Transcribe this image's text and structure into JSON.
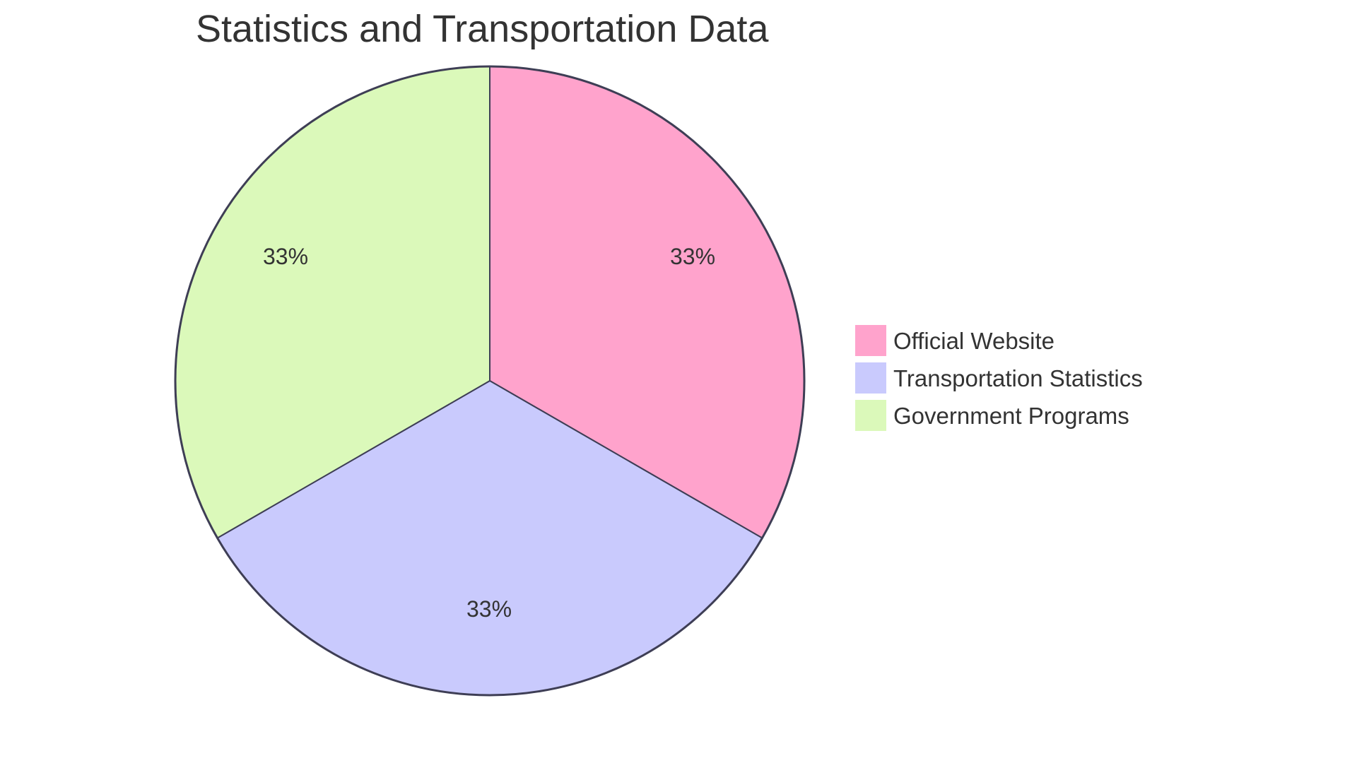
{
  "chart_data": {
    "type": "pie",
    "title": "Statistics and Transportation Data",
    "categories": [
      "Official Website",
      "Transportation Statistics",
      "Government Programs"
    ],
    "values": [
      33.33,
      33.33,
      33.33
    ],
    "labels": [
      "33%",
      "33%",
      "33%"
    ],
    "colors": [
      "#FFA3CC",
      "#C9CAFD",
      "#DBF9BA"
    ],
    "stroke_color": "#3E3E55",
    "start_angle_deg": 0,
    "direction": "clockwise",
    "legend_position": "right"
  },
  "title": "Statistics and Transportation Data",
  "legend": {
    "items": [
      {
        "label": "Official Website",
        "color": "#FFA3CC"
      },
      {
        "label": "Transportation Statistics",
        "color": "#C9CAFD"
      },
      {
        "label": "Government Programs",
        "color": "#DBF9BA"
      }
    ]
  },
  "slices": [
    {
      "label": "33%"
    },
    {
      "label": "33%"
    },
    {
      "label": "33%"
    }
  ]
}
